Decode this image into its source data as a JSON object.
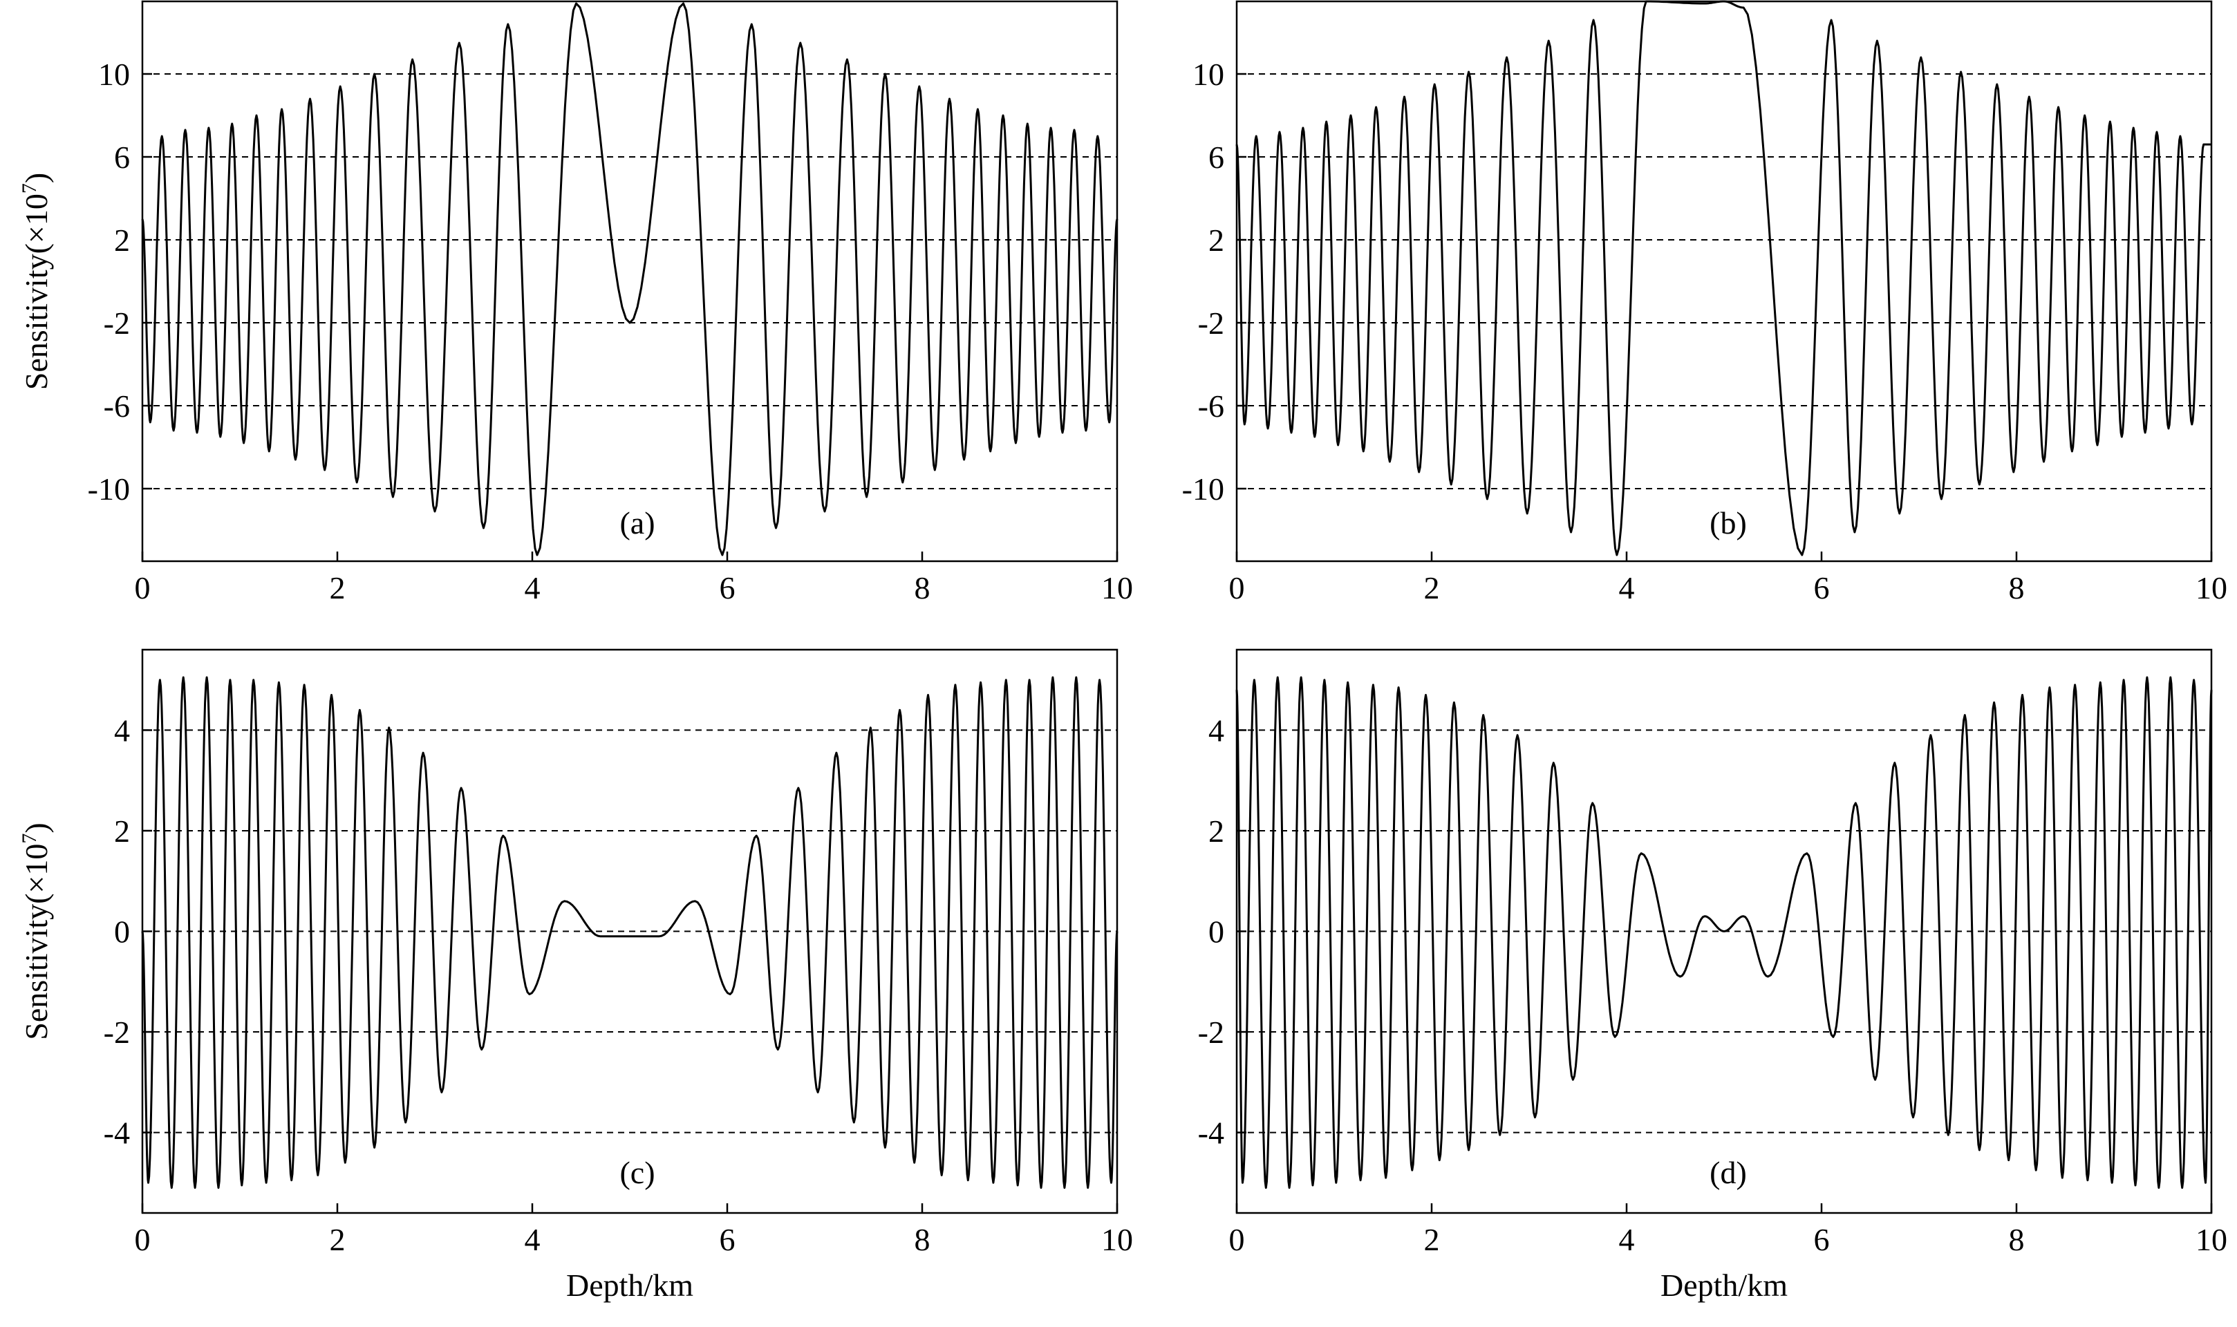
{
  "chart_data": [
    {
      "type": "line",
      "panel_label": "(a)",
      "xlabel": "",
      "ylabel": "Sensitivity(×10",
      "ylabel_exponent": "7",
      "ylabel_suffix": ")",
      "xlim": [
        0,
        10
      ],
      "ylim": [
        -13.5,
        13.5
      ],
      "xticks": [
        "0",
        "2",
        "4",
        "6",
        "8",
        "10"
      ],
      "yticks": [
        "10",
        "6",
        "2",
        "-2",
        "-6",
        "-10"
      ],
      "ytick_values": [
        10,
        6,
        2,
        -2,
        -6,
        -10
      ],
      "grid_y": [
        10,
        6,
        2,
        -2,
        -6,
        -10
      ],
      "series": [
        {
          "name": "sensitivity",
          "description_model": "oscillating kernel, ~0.23 km period, symmetric about 5 km",
          "x": [
            0,
            0.08,
            0.2,
            0.32,
            0.44,
            0.56,
            0.68,
            0.8,
            0.92,
            1.04,
            1.17,
            1.3,
            1.43,
            1.57,
            1.72,
            1.87,
            2.03,
            2.2,
            2.38,
            2.57,
            2.77,
            3.0,
            3.25,
            3.5,
            3.75,
            4.05,
            4.45,
            5.0,
            5.55,
            5.95,
            6.25,
            6.5,
            6.75,
            7.0,
            7.23,
            7.43,
            7.62,
            7.8,
            7.97,
            8.13,
            8.28,
            8.43,
            8.57,
            8.7,
            8.83,
            8.96,
            9.08,
            9.2,
            9.32,
            9.44,
            9.56,
            9.68,
            9.8,
            9.92,
            10.0
          ],
          "values": [
            3,
            -6.8,
            7,
            -7.2,
            7.3,
            -7.3,
            7.4,
            -7.5,
            7.6,
            -7.8,
            8.0,
            -8.2,
            8.3,
            -8.6,
            8.8,
            -9.1,
            9.4,
            -9.7,
            10.0,
            -10.4,
            10.7,
            -11.1,
            11.5,
            -11.9,
            12.4,
            -13.2,
            13.4,
            -2.0,
            13.4,
            -13.2,
            12.4,
            -11.9,
            11.5,
            -11.1,
            10.7,
            -10.4,
            10.0,
            -9.7,
            9.4,
            -9.1,
            8.8,
            -8.6,
            8.3,
            -8.2,
            8.0,
            -7.8,
            7.6,
            -7.5,
            7.4,
            -7.3,
            7.3,
            -7.2,
            7.0,
            -6.8,
            3
          ]
        }
      ]
    },
    {
      "type": "line",
      "panel_label": "(b)",
      "xlabel": "",
      "ylabel": "",
      "xlim": [
        0,
        10
      ],
      "ylim": [
        -13.5,
        13.5
      ],
      "xticks": [
        "0",
        "2",
        "4",
        "6",
        "8",
        "10"
      ],
      "yticks": [
        "10",
        "6",
        "2",
        "-2",
        "-6",
        "-10"
      ],
      "ytick_values": [
        10,
        6,
        2,
        -2,
        -6,
        -10
      ],
      "grid_y": [
        10,
        6,
        2,
        -2,
        -6,
        -10
      ],
      "series": [
        {
          "name": "sensitivity",
          "x": [
            0,
            0.08,
            0.2,
            0.32,
            0.44,
            0.56,
            0.68,
            0.8,
            0.92,
            1.04,
            1.17,
            1.3,
            1.43,
            1.57,
            1.72,
            1.87,
            2.03,
            2.2,
            2.38,
            2.57,
            2.77,
            2.98,
            3.2,
            3.43,
            3.66,
            3.9,
            4.2,
            4.8,
            5.0,
            5.2,
            5.8,
            6.1,
            6.34,
            6.57,
            6.8,
            7.02,
            7.23,
            7.43,
            7.62,
            7.8,
            7.97,
            8.13,
            8.28,
            8.43,
            8.57,
            8.7,
            8.83,
            8.96,
            9.08,
            9.2,
            9.32,
            9.44,
            9.56,
            9.68,
            9.8,
            9.92,
            10.0
          ],
          "values": [
            6.6,
            -6.9,
            7.0,
            -7.1,
            7.2,
            -7.3,
            7.4,
            -7.5,
            7.7,
            -7.9,
            8.0,
            -8.2,
            8.4,
            -8.7,
            8.9,
            -9.2,
            9.5,
            -9.8,
            10.1,
            -10.5,
            10.8,
            -11.2,
            11.6,
            -12.1,
            12.6,
            -13.2,
            13.5,
            13.4,
            13.5,
            13.2,
            -13.2,
            12.6,
            -12.1,
            11.6,
            -11.2,
            10.8,
            -10.5,
            10.1,
            -9.8,
            9.5,
            -9.2,
            8.9,
            -8.7,
            8.4,
            -8.2,
            8.0,
            -7.9,
            7.7,
            -7.5,
            7.4,
            -7.3,
            7.2,
            -7.1,
            7.0,
            -6.9,
            6.6,
            6.6
          ]
        }
      ]
    },
    {
      "type": "line",
      "panel_label": "(c)",
      "xlabel": "Depth/km",
      "ylabel": "Sensitivity(×10",
      "ylabel_exponent": "7",
      "ylabel_suffix": ")",
      "xlim": [
        0,
        10
      ],
      "ylim": [
        -5.6,
        5.6
      ],
      "xticks": [
        "0",
        "2",
        "4",
        "6",
        "8",
        "10"
      ],
      "yticks": [
        "4",
        "2",
        "0",
        "-2",
        "-4"
      ],
      "ytick_values": [
        4,
        2,
        0,
        -2,
        -4
      ],
      "grid_y": [
        4,
        2,
        0,
        -2,
        -4
      ],
      "series": [
        {
          "name": "sensitivity",
          "x": [
            0,
            0.06,
            0.18,
            0.3,
            0.42,
            0.54,
            0.66,
            0.78,
            0.9,
            1.02,
            1.14,
            1.27,
            1.4,
            1.53,
            1.66,
            1.8,
            1.94,
            2.08,
            2.23,
            2.38,
            2.53,
            2.7,
            2.88,
            3.07,
            3.27,
            3.48,
            3.7,
            3.97,
            4.33,
            4.7,
            5.0,
            5.3,
            5.67,
            6.03,
            6.3,
            6.52,
            6.73,
            6.93,
            7.12,
            7.3,
            7.47,
            7.62,
            7.77,
            7.92,
            8.06,
            8.2,
            8.34,
            8.47,
            8.6,
            8.73,
            8.86,
            8.98,
            9.1,
            9.22,
            9.34,
            9.46,
            9.58,
            9.7,
            9.82,
            9.94,
            10.0
          ],
          "values": [
            0,
            -5.0,
            5.0,
            -5.1,
            5.05,
            -5.1,
            5.05,
            -5.1,
            5.0,
            -5.05,
            5.0,
            -5.0,
            4.95,
            -4.95,
            4.9,
            -4.85,
            4.7,
            -4.6,
            4.4,
            -4.3,
            4.05,
            -3.8,
            3.55,
            -3.2,
            2.85,
            -2.35,
            1.9,
            -1.25,
            0.6,
            -0.1,
            -0.1,
            -0.1,
            0.6,
            -1.25,
            1.9,
            -2.35,
            2.85,
            -3.2,
            3.55,
            -3.8,
            4.05,
            -4.3,
            4.4,
            -4.6,
            4.7,
            -4.85,
            4.9,
            -4.95,
            4.95,
            -5.0,
            5.0,
            -5.05,
            5.0,
            -5.1,
            5.05,
            -5.1,
            5.05,
            -5.1,
            5.0,
            -5.0,
            0
          ]
        }
      ]
    },
    {
      "type": "line",
      "panel_label": "(d)",
      "xlabel": "Depth/km",
      "ylabel": "",
      "xlim": [
        0,
        10
      ],
      "ylim": [
        -5.6,
        5.6
      ],
      "xticks": [
        "0",
        "2",
        "4",
        "6",
        "8",
        "10"
      ],
      "yticks": [
        "4",
        "2",
        "0",
        "-2",
        "-4"
      ],
      "ytick_values": [
        4,
        2,
        0,
        -2,
        -4
      ],
      "grid_y": [
        4,
        2,
        0,
        -2,
        -4
      ],
      "series": [
        {
          "name": "sensitivity",
          "x": [
            0,
            0.06,
            0.18,
            0.3,
            0.42,
            0.54,
            0.66,
            0.78,
            0.9,
            1.02,
            1.14,
            1.27,
            1.4,
            1.53,
            1.66,
            1.8,
            1.94,
            2.08,
            2.23,
            2.38,
            2.53,
            2.7,
            2.88,
            3.06,
            3.25,
            3.45,
            3.65,
            3.88,
            4.15,
            4.55,
            4.8,
            5.0,
            5.2,
            5.45,
            5.85,
            6.12,
            6.35,
            6.55,
            6.75,
            6.94,
            7.12,
            7.3,
            7.47,
            7.62,
            7.77,
            7.92,
            8.06,
            8.2,
            8.34,
            8.47,
            8.6,
            8.73,
            8.86,
            8.98,
            9.1,
            9.22,
            9.34,
            9.46,
            9.58,
            9.7,
            9.82,
            9.94,
            10.0
          ],
          "values": [
            4.8,
            -5.0,
            5.0,
            -5.1,
            5.05,
            -5.1,
            5.05,
            -5.05,
            5.0,
            -5.0,
            4.95,
            -4.95,
            4.9,
            -4.9,
            4.85,
            -4.75,
            4.7,
            -4.55,
            4.55,
            -4.35,
            4.3,
            -4.05,
            3.9,
            -3.7,
            3.35,
            -2.95,
            2.55,
            -2.1,
            1.55,
            -0.9,
            0.3,
            0.0,
            0.3,
            -0.9,
            1.55,
            -2.1,
            2.55,
            -2.95,
            3.35,
            -3.7,
            3.9,
            -4.05,
            4.3,
            -4.35,
            4.55,
            -4.55,
            4.7,
            -4.75,
            4.85,
            -4.9,
            4.9,
            -4.95,
            4.95,
            -5.0,
            5.0,
            -5.05,
            5.05,
            -5.1,
            5.05,
            -5.1,
            5.0,
            -5.0,
            4.8
          ]
        }
      ]
    }
  ]
}
